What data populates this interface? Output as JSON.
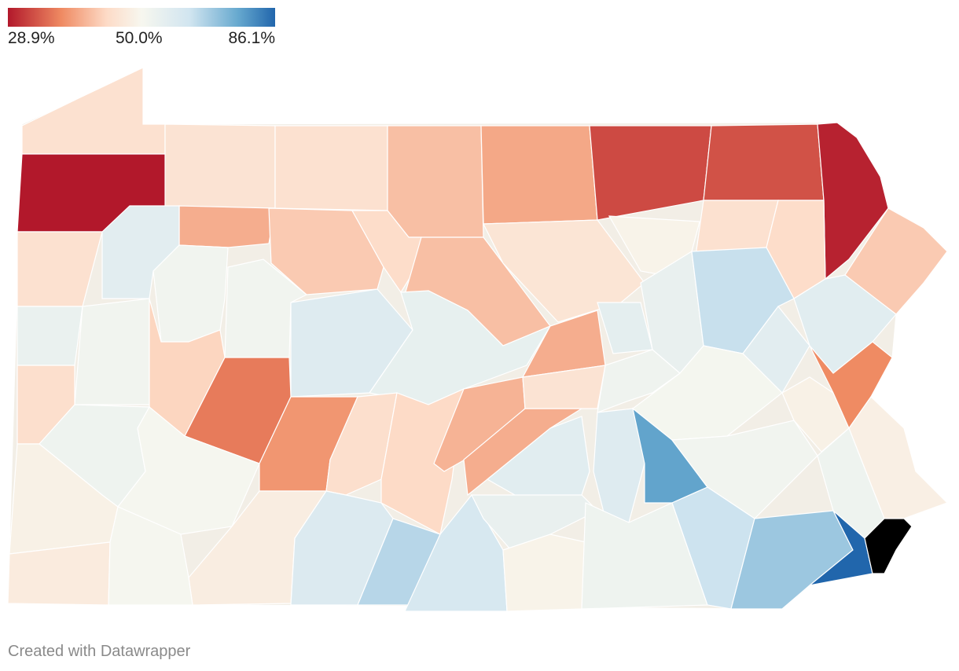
{
  "legend": {
    "min_label": "28.9%",
    "mid_label": "50.0%",
    "max_label": "86.1%",
    "min_value": 28.9,
    "mid_value": 50.0,
    "max_value": 86.1,
    "stops": [
      "#b2182b",
      "#ef8a62",
      "#fddbc7",
      "#f7f7ef",
      "#d1e5f0",
      "#67a9cf",
      "#2166ac"
    ]
  },
  "map_data": {
    "type": "choropleth",
    "region": "Pennsylvania counties",
    "county_shares": [
      44.5,
      45.0,
      44.5,
      40.5,
      38.5,
      32.0,
      32.5,
      29.5,
      28.9,
      39.0,
      41.5,
      43.5,
      40.5,
      45.5,
      49.0,
      44.5,
      43.5,
      41.5,
      44.5,
      56.5,
      52.0,
      52.0,
      58.0,
      55.0,
      39.0,
      56.0,
      54.5,
      63.0,
      57.0,
      56.5,
      54.0,
      52.0,
      42.5,
      35.0,
      37.0,
      44.0,
      43.0,
      39.5,
      39.0,
      45.0,
      52.5,
      51.0,
      48.5,
      36.0,
      44.0,
      53.0,
      50.5,
      48.5,
      47.5,
      58.5,
      65.0,
      60.0,
      57.0,
      54.5,
      58.0,
      75.0,
      52.0,
      48.0,
      53.0,
      47.0,
      50.5,
      49.0,
      53.0,
      62.5,
      68.0,
      86.1
    ]
  },
  "footer": {
    "credit": "Created with Datawrapper"
  }
}
